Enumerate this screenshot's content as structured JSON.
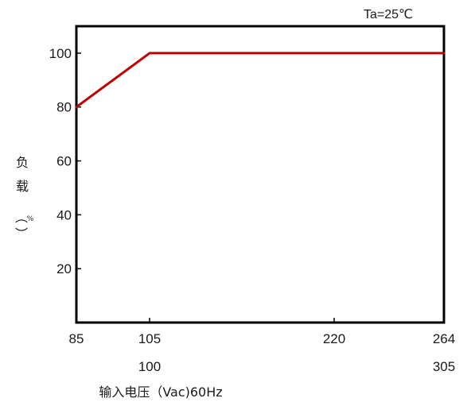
{
  "chart_data": {
    "type": "line",
    "annotation": "Ta=25℃",
    "ylabel": {
      "chars": [
        "负",
        "载"
      ],
      "paren_open": "︵",
      "unit": "%",
      "paren_close": "︶"
    },
    "xlabel": "输入电压（Vac)60Hz",
    "xlim": [
      85,
      264
    ],
    "ylim": [
      0,
      110
    ],
    "yticks": [
      20,
      40,
      60,
      80,
      100
    ],
    "xticks": [
      {
        "value": 85,
        "label": "85",
        "sublabel": ""
      },
      {
        "value": 105,
        "label": "105",
        "sublabel": "100"
      },
      {
        "value": 220,
        "label": "220",
        "sublabel": ""
      },
      {
        "value": 264,
        "label": "264",
        "sublabel": "305"
      }
    ],
    "series": [
      {
        "color": "#c00000",
        "x": [
          85,
          105,
          264
        ],
        "y": [
          80,
          100,
          100
        ]
      }
    ],
    "grid": false
  }
}
